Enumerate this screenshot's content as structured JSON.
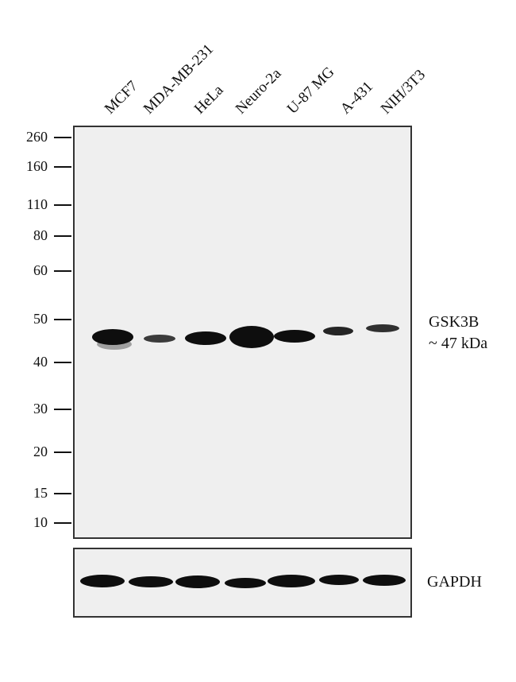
{
  "lanes": [
    "MCF7",
    "MDA-MB-231",
    "HeLa",
    "Neuro-2a",
    "U-87 MG",
    "A-431",
    "NIH/3T3"
  ],
  "markers": [
    "260",
    "160",
    "110",
    "80",
    "60",
    "50",
    "40",
    "30",
    "20",
    "15",
    "10"
  ],
  "target": {
    "name": "GSK3B",
    "size": "~ 47 kDa",
    "band_intensity": [
      1.0,
      0.35,
      0.8,
      1.0,
      0.75,
      0.45,
      0.4
    ]
  },
  "loading_control": {
    "name": "GAPDH",
    "band_intensity": [
      0.9,
      0.85,
      0.9,
      0.75,
      0.85,
      0.7,
      0.75
    ]
  }
}
